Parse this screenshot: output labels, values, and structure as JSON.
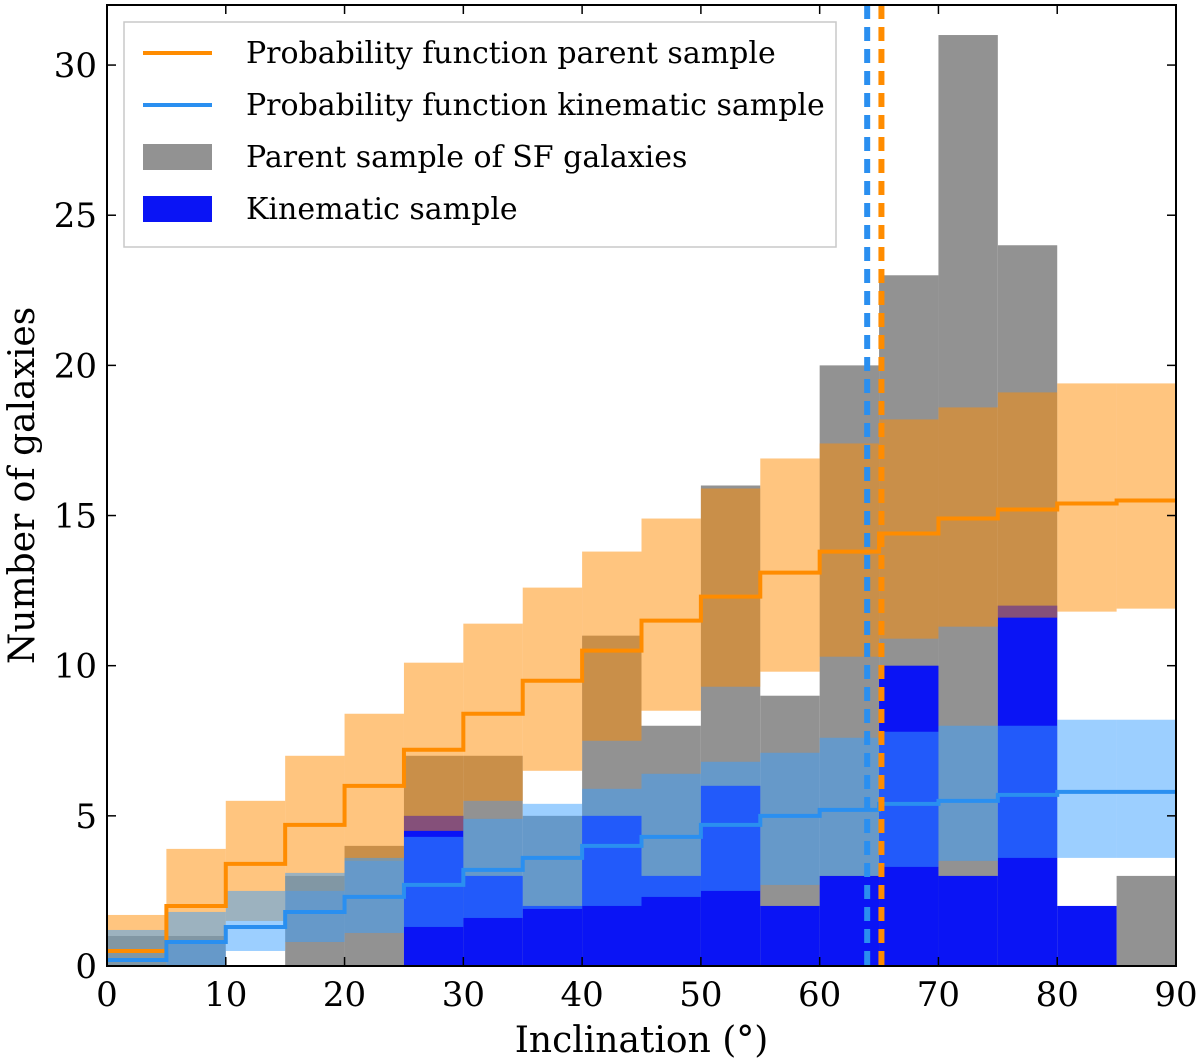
{
  "chart_data": {
    "type": "histogram",
    "xlabel": "Inclination (°)",
    "ylabel": "Number of galaxies",
    "xlim": [
      0,
      90
    ],
    "ylim": [
      0,
      32
    ],
    "xticks": [
      0,
      10,
      20,
      30,
      40,
      50,
      60,
      70,
      80,
      90
    ],
    "yticks": [
      0,
      5,
      10,
      15,
      20,
      25,
      30
    ],
    "bin_edges": [
      0,
      5,
      10,
      15,
      20,
      25,
      30,
      35,
      40,
      45,
      50,
      55,
      60,
      65,
      70,
      75,
      80,
      85,
      90
    ],
    "colors": {
      "parent_hist": "#929292",
      "kinematic_hist": "#0a14f5",
      "parent_line": "#ff8c00",
      "kinematic_line": "#2a8ff0",
      "parent_band": "#ff8c00",
      "kinematic_band": "#3aa0ff"
    },
    "series": [
      {
        "name": "Parent sample of SF galaxies",
        "kind": "histogram",
        "values": [
          1,
          1,
          0,
          3,
          4,
          7,
          7,
          5,
          11,
          8,
          16,
          9,
          20,
          23,
          31,
          24,
          0,
          3
        ]
      },
      {
        "name": "Kinematic sample",
        "kind": "histogram",
        "values": [
          0,
          0,
          0,
          0,
          0,
          5,
          3,
          2,
          5,
          3,
          6,
          2,
          3,
          10,
          3,
          12,
          2,
          0
        ]
      },
      {
        "name": "Probability function parent sample",
        "kind": "step",
        "values": [
          0.5,
          2.0,
          3.4,
          4.7,
          6.0,
          7.2,
          8.4,
          9.5,
          10.5,
          11.5,
          12.3,
          13.1,
          13.8,
          14.4,
          14.9,
          15.2,
          15.4,
          15.5
        ],
        "lower": [
          0.0,
          0.8,
          1.5,
          2.5,
          3.5,
          4.5,
          5.5,
          6.5,
          7.5,
          8.5,
          9.3,
          9.8,
          10.3,
          10.9,
          11.3,
          11.6,
          11.8,
          11.9
        ],
        "upper": [
          1.7,
          3.9,
          5.5,
          7.0,
          8.4,
          10.1,
          11.4,
          12.6,
          13.8,
          14.9,
          15.9,
          16.9,
          17.4,
          18.2,
          18.6,
          19.1,
          19.4,
          19.4
        ],
        "median_inclination": 65.2
      },
      {
        "name": "Probability function kinematic sample",
        "kind": "step",
        "values": [
          0.2,
          0.8,
          1.3,
          1.8,
          2.3,
          2.7,
          3.2,
          3.6,
          4.0,
          4.3,
          4.7,
          5.0,
          5.2,
          5.4,
          5.5,
          5.7,
          5.8,
          5.8
        ],
        "lower": [
          0.0,
          0.0,
          0.5,
          0.8,
          1.1,
          1.3,
          1.6,
          1.9,
          2.0,
          2.3,
          2.5,
          2.7,
          3.0,
          3.3,
          3.5,
          3.6,
          3.6,
          3.6
        ],
        "upper": [
          1.2,
          1.8,
          2.5,
          3.1,
          3.6,
          4.3,
          4.9,
          5.4,
          5.9,
          6.4,
          6.8,
          7.1,
          7.6,
          7.8,
          8.0,
          8.0,
          8.2,
          8.2
        ],
        "median_inclination": 64.0
      }
    ],
    "legend": {
      "position": "top-left",
      "entries": [
        {
          "label": "Probability function parent sample",
          "style": "line",
          "color": "#ff8c00"
        },
        {
          "label": "Probability function kinematic sample",
          "style": "line",
          "color": "#2a8ff0"
        },
        {
          "label": "Parent sample of SF galaxies",
          "style": "patch",
          "color": "#929292"
        },
        {
          "label": "Kinematic sample",
          "style": "patch",
          "color": "#0a14f5"
        }
      ]
    }
  }
}
